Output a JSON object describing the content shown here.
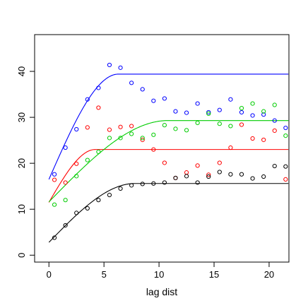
{
  "chart_data": {
    "type": "scatter",
    "xlabel": "lag dist",
    "ylabel": "",
    "title": "",
    "xlim": [
      -1.3,
      21.8
    ],
    "ylim": [
      -1.5,
      48.0
    ],
    "x_ticks": [
      0,
      5,
      10,
      15,
      20
    ],
    "y_ticks": [
      0,
      10,
      20,
      30,
      40
    ],
    "grid": false,
    "legend": "none",
    "series": [
      {
        "color": "#0000ff",
        "points": [
          [
            0.5,
            17.6
          ],
          [
            1.5,
            23.4
          ],
          [
            2.5,
            27.4
          ],
          [
            3.5,
            33.9
          ],
          [
            4.5,
            36.4
          ],
          [
            5.5,
            41.4
          ],
          [
            6.5,
            40.8
          ],
          [
            7.5,
            37.5
          ],
          [
            8.5,
            36.1
          ],
          [
            9.5,
            33.6
          ],
          [
            10.5,
            34.1
          ],
          [
            11.5,
            31.3
          ],
          [
            12.5,
            31.0
          ],
          [
            13.5,
            33.0
          ],
          [
            14.5,
            31.1
          ],
          [
            15.5,
            31.6
          ],
          [
            16.5,
            33.9
          ],
          [
            17.5,
            31.1
          ],
          [
            18.5,
            30.4
          ],
          [
            19.5,
            30.6
          ],
          [
            20.5,
            29.3
          ],
          [
            21.5,
            27.7
          ]
        ],
        "fit": {
          "model": "spherical",
          "nugget": 16.5,
          "sill": 39.4,
          "range": 6.3
        }
      },
      {
        "color": "#ff0000",
        "points": [
          [
            0.5,
            16.4
          ],
          [
            1.5,
            15.8
          ],
          [
            2.5,
            19.9
          ],
          [
            3.5,
            27.8
          ],
          [
            4.5,
            32.1
          ],
          [
            5.5,
            27.3
          ],
          [
            6.5,
            27.9
          ],
          [
            7.5,
            28.1
          ],
          [
            8.5,
            25.1
          ],
          [
            9.5,
            23.0
          ],
          [
            10.5,
            20.1
          ],
          [
            11.5,
            16.8
          ],
          [
            12.5,
            18.0
          ],
          [
            13.5,
            19.5
          ],
          [
            14.5,
            17.5
          ],
          [
            15.5,
            20.1
          ],
          [
            16.5,
            23.4
          ],
          [
            17.5,
            28.4
          ],
          [
            18.5,
            25.4
          ],
          [
            19.5,
            25.1
          ],
          [
            20.5,
            27.1
          ],
          [
            21.5,
            16.5
          ]
        ],
        "fit": {
          "model": "spherical",
          "nugget": 11.5,
          "sill": 23.0,
          "range": 4.2
        }
      },
      {
        "color": "#00cc00",
        "points": [
          [
            0.5,
            11.0
          ],
          [
            1.5,
            12.0
          ],
          [
            2.5,
            17.2
          ],
          [
            3.5,
            20.7
          ],
          [
            4.5,
            22.5
          ],
          [
            5.5,
            25.5
          ],
          [
            6.5,
            25.5
          ],
          [
            7.5,
            26.4
          ],
          [
            8.5,
            25.5
          ],
          [
            9.5,
            26.2
          ],
          [
            10.5,
            28.3
          ],
          [
            11.5,
            27.5
          ],
          [
            12.5,
            27.2
          ],
          [
            13.5,
            28.8
          ],
          [
            14.5,
            30.8
          ],
          [
            15.5,
            28.6
          ],
          [
            16.5,
            28.1
          ],
          [
            17.5,
            32.0
          ],
          [
            18.5,
            33.0
          ],
          [
            19.5,
            31.3
          ],
          [
            20.5,
            32.7
          ],
          [
            21.5,
            26.0
          ]
        ],
        "fit": {
          "model": "spherical",
          "nugget": 11.6,
          "sill": 29.3,
          "range": 10.8
        }
      },
      {
        "color": "#000000",
        "points": [
          [
            0.5,
            3.8
          ],
          [
            1.5,
            6.5
          ],
          [
            2.5,
            9.2
          ],
          [
            3.5,
            10.2
          ],
          [
            4.5,
            12.0
          ],
          [
            5.5,
            13.1
          ],
          [
            6.5,
            14.5
          ],
          [
            7.5,
            15.2
          ],
          [
            8.5,
            15.5
          ],
          [
            9.5,
            15.6
          ],
          [
            10.5,
            15.8
          ],
          [
            11.5,
            16.8
          ],
          [
            12.5,
            17.2
          ],
          [
            13.5,
            15.8
          ],
          [
            14.5,
            17.1
          ],
          [
            15.5,
            18.1
          ],
          [
            16.5,
            17.6
          ],
          [
            17.5,
            17.6
          ],
          [
            18.5,
            16.7
          ],
          [
            19.5,
            17.1
          ],
          [
            20.5,
            19.4
          ],
          [
            21.5,
            19.3
          ]
        ],
        "fit": {
          "model": "spherical",
          "nugget": 2.8,
          "sill": 15.6,
          "range": 7.8
        }
      }
    ]
  }
}
